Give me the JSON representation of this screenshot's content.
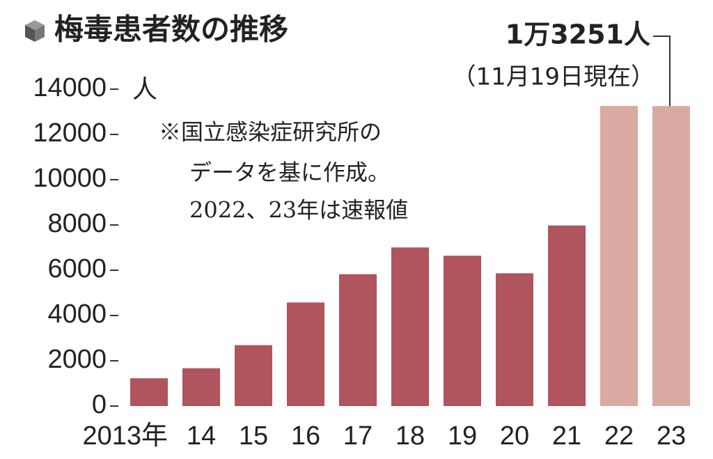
{
  "chart_data": {
    "type": "bar",
    "title": "梅毒患者数の推移",
    "y_unit": "人",
    "categories": [
      "2013年",
      "14",
      "15",
      "16",
      "17",
      "18",
      "19",
      "20",
      "21",
      "22",
      "23"
    ],
    "values": [
      1228,
      1671,
      2690,
      4575,
      5826,
      7007,
      6642,
      5867,
      7978,
      13258,
      13251
    ],
    "value_labels": [
      null,
      null,
      null,
      null,
      null,
      null,
      null,
      null,
      null,
      null,
      "1万3251人"
    ],
    "colors": [
      "#b0545d",
      "#b0545d",
      "#b0545d",
      "#b0545d",
      "#b0545d",
      "#b0545d",
      "#b0545d",
      "#b0545d",
      "#b0545d",
      "#d9a9a2",
      "#d9a9a2"
    ],
    "annotation": "（11月19日現在）",
    "notes": [
      "※国立感染症研究所の",
      "データを基に作成。",
      "2022、23年は速報値"
    ],
    "ylim": [
      0,
      14000
    ],
    "yticks": [
      0,
      2000,
      4000,
      6000,
      8000,
      10000,
      12000,
      14000
    ],
    "grid": false
  }
}
